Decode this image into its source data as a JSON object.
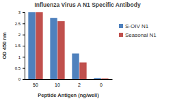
{
  "chart_data": {
    "type": "bar",
    "title": "Influenza Virus A N1 Specific Antibody",
    "x_label": "Peptide Antigen (ng/well)",
    "y_label": "OD 450 nm",
    "categories": [
      "50",
      "10",
      "2",
      "0"
    ],
    "series": [
      {
        "name": "S-OIV N1",
        "color": "#4f81bd",
        "values": [
          3.0,
          2.75,
          1.15,
          0.05
        ]
      },
      {
        "name": "Seasonal N1",
        "color": "#c0504d",
        "values": [
          3.0,
          2.6,
          0.75,
          0.03
        ]
      }
    ],
    "ylim": [
      0,
      3
    ],
    "yticks": [
      0,
      0.5,
      1,
      1.5,
      2,
      2.5,
      3
    ],
    "grid": false,
    "legend": "right"
  }
}
